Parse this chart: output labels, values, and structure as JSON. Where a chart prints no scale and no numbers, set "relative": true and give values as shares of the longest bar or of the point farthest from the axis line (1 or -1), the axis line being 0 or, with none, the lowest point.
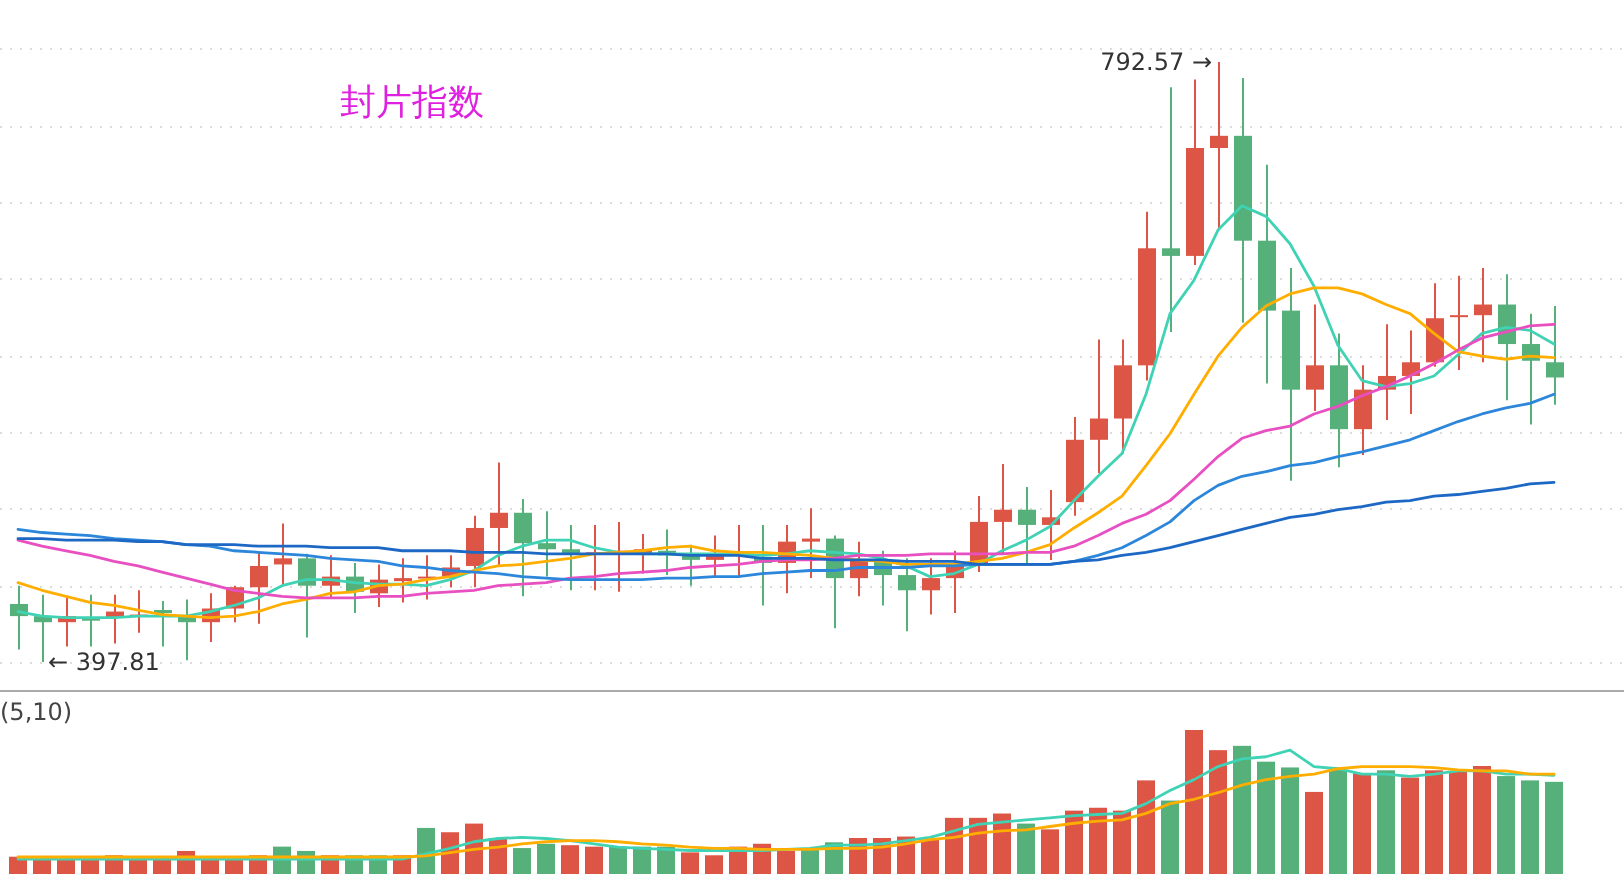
{
  "chart_data": [
    {
      "type": "candlestick",
      "title": "封片指数",
      "categories": [
        null,
        null,
        null,
        null,
        null,
        null,
        null,
        null,
        null,
        null,
        null,
        null,
        null,
        null,
        null,
        null,
        null,
        null,
        null,
        null,
        null,
        null,
        null,
        null,
        null,
        null,
        null,
        null,
        null,
        null,
        null,
        null,
        null,
        null,
        null,
        null,
        null,
        null,
        null,
        null,
        null,
        null,
        null,
        null,
        null,
        null,
        null,
        null,
        null,
        null,
        null,
        null,
        null,
        null,
        null,
        null,
        null,
        null,
        null,
        null,
        null,
        null,
        null,
        null,
        null
      ],
      "ohlc": [
        [
          436,
          448,
          406,
          428
        ],
        [
          428,
          442,
          397.81,
          424
        ],
        [
          424,
          440,
          408,
          428
        ],
        [
          427,
          442,
          408,
          425
        ],
        [
          427,
          442,
          410,
          431
        ],
        [
          428,
          445,
          417,
          429
        ],
        [
          432,
          438,
          408,
          430
        ],
        [
          428,
          439,
          399,
          424
        ],
        [
          424,
          443,
          411,
          433
        ],
        [
          433,
          448,
          424,
          447
        ],
        [
          447,
          470,
          423,
          461
        ],
        [
          462,
          489,
          448,
          466
        ],
        [
          466,
          469,
          414,
          448
        ],
        [
          448,
          468,
          440,
          454
        ],
        [
          454,
          463,
          430,
          444
        ],
        [
          443,
          462,
          434,
          452
        ],
        [
          451,
          466,
          437,
          453
        ],
        [
          453,
          468,
          439,
          454
        ],
        [
          454,
          468,
          447,
          460
        ],
        [
          461,
          494,
          447,
          486
        ],
        [
          486,
          529,
          461,
          496
        ],
        [
          496,
          505,
          441,
          476
        ],
        [
          476,
          497,
          454,
          472
        ],
        [
          472,
          488,
          445,
          469
        ],
        [
          469,
          488,
          445,
          470
        ],
        [
          469,
          490,
          444,
          471
        ],
        [
          469,
          482,
          456,
          472
        ],
        [
          471,
          485,
          455,
          468
        ],
        [
          468,
          475,
          448,
          465
        ],
        [
          465,
          481,
          453,
          468
        ],
        [
          468,
          488,
          453,
          470
        ],
        [
          467,
          488,
          435,
          463
        ],
        [
          463,
          488,
          443,
          477
        ],
        [
          477,
          499,
          453,
          479
        ],
        [
          479,
          481,
          420,
          453
        ],
        [
          453,
          477,
          441,
          465
        ],
        [
          465,
          471,
          435,
          455
        ],
        [
          455,
          466,
          418,
          445
        ],
        [
          445,
          466,
          429,
          453
        ],
        [
          453,
          471,
          430,
          462
        ],
        [
          462,
          507,
          457,
          490
        ],
        [
          490,
          528,
          469,
          498
        ],
        [
          498,
          513,
          462,
          488
        ],
        [
          488,
          511,
          465,
          493
        ],
        [
          503,
          559,
          494,
          544
        ],
        [
          544,
          610,
          522,
          558
        ],
        [
          558,
          610,
          535,
          593
        ],
        [
          593,
          694,
          583,
          670
        ],
        [
          670,
          776,
          615,
          665
        ],
        [
          665,
          781,
          659,
          736
        ],
        [
          736,
          792.57,
          682,
          744
        ],
        [
          744,
          782,
          621,
          675
        ],
        [
          675,
          725,
          581,
          629
        ],
        [
          629,
          657,
          517,
          577
        ],
        [
          577,
          633,
          563,
          593
        ],
        [
          593,
          614,
          526,
          551
        ],
        [
          551,
          593,
          534,
          577
        ],
        [
          577,
          620,
          557,
          586
        ],
        [
          586,
          616,
          561,
          595
        ],
        [
          595,
          647,
          592,
          624
        ],
        [
          625,
          652,
          590,
          626
        ],
        [
          626,
          657,
          595,
          633
        ],
        [
          633,
          653,
          570,
          607
        ],
        [
          607,
          627,
          554,
          596
        ],
        [
          595,
          632,
          567,
          585
        ]
      ],
      "colors": [
        "#55b07a",
        "#55b07a",
        "#dd5544",
        "#55b07a",
        "#dd5544",
        "#dd5544",
        "#55b07a",
        "#55b07a",
        "#dd5544",
        "#dd5544",
        "#dd5544",
        "#dd5544",
        "#55b07a",
        "#dd5544",
        "#55b07a",
        "#dd5544",
        "#dd5544",
        "#dd5544",
        "#dd5544",
        "#dd5544",
        "#dd5544",
        "#55b07a",
        "#55b07a",
        "#55b07a",
        "#dd5544",
        "#dd5544",
        "#dd5544",
        "#55b07a",
        "#55b07a",
        "#dd5544",
        "#dd5544",
        "#55b07a",
        "#dd5544",
        "#dd5544",
        "#55b07a",
        "#dd5544",
        "#55b07a",
        "#55b07a",
        "#dd5544",
        "#dd5544",
        "#dd5544",
        "#dd5544",
        "#55b07a",
        "#dd5544",
        "#dd5544",
        "#dd5544",
        "#dd5544",
        "#dd5544",
        "#55b07a",
        "#dd5544",
        "#dd5544",
        "#55b07a",
        "#55b07a",
        "#55b07a",
        "#dd5544",
        "#55b07a",
        "#dd5544",
        "#dd5544",
        "#dd5544",
        "#dd5544",
        "#dd5544",
        "#dd5544",
        "#55b07a",
        "#55b07a",
        "#55b07a"
      ],
      "series": [
        {
          "type": "line",
          "color": "#40d2b4",
          "values": [
            431,
            428,
            427,
            427,
            427,
            428,
            428,
            428,
            431,
            435,
            440,
            448,
            452,
            452,
            450,
            449,
            449,
            448,
            452,
            458,
            468,
            474,
            478,
            478,
            473,
            470,
            469,
            469,
            469,
            469,
            469,
            468,
            469,
            471,
            470,
            469,
            466,
            461,
            454,
            456,
            462,
            471,
            478,
            487,
            504,
            520,
            535,
            574,
            627,
            649,
            682,
            698,
            691,
            673,
            645,
            606,
            583,
            579,
            581,
            586,
            600,
            614,
            618,
            616,
            607
          ]
        },
        {
          "type": "line",
          "color": "#ffae00",
          "values": [
            450,
            445,
            441,
            437,
            435,
            432,
            429,
            428,
            427,
            428,
            431,
            436,
            439,
            443,
            444,
            448,
            449,
            452,
            454,
            458,
            461,
            462,
            464,
            466,
            469,
            470,
            471,
            473,
            474,
            471,
            470,
            470,
            469,
            468,
            466,
            465,
            464,
            462,
            462,
            462,
            464,
            466,
            470,
            475,
            486,
            496,
            507,
            527,
            548,
            574,
            599,
            618,
            632,
            640,
            644,
            644,
            640,
            633,
            627,
            614,
            602,
            599,
            597,
            599,
            598
          ]
        },
        {
          "type": "line",
          "color": "#e84fc0",
          "values": [
            478,
            474,
            471,
            468,
            464,
            461,
            457,
            453,
            449,
            445,
            443,
            441,
            440,
            440,
            440,
            441,
            441,
            443,
            444,
            445,
            448,
            449,
            450,
            453,
            454,
            456,
            457,
            458,
            460,
            461,
            462,
            464,
            465,
            465,
            466,
            468,
            468,
            468,
            469,
            469,
            469,
            469,
            470,
            470,
            474,
            481,
            489,
            495,
            504,
            518,
            533,
            545,
            550,
            553,
            561,
            566,
            573,
            579,
            586,
            594,
            603,
            611,
            615,
            619,
            620
          ]
        },
        {
          "type": "line",
          "color": "#2c86da",
          "values": [
            485,
            483,
            482,
            481,
            479,
            478,
            477,
            475,
            474,
            471,
            470,
            469,
            468,
            466,
            465,
            464,
            461,
            460,
            458,
            457,
            456,
            454,
            453,
            452,
            452,
            452,
            452,
            453,
            453,
            454,
            454,
            456,
            457,
            458,
            458,
            460,
            460,
            460,
            461,
            461,
            462,
            462,
            462,
            462,
            464,
            468,
            473,
            481,
            490,
            504,
            514,
            520,
            523,
            527,
            529,
            533,
            536,
            540,
            544,
            550,
            556,
            561,
            565,
            568,
            574
          ]
        },
        {
          "type": "line",
          "color": "#1c68c4",
          "values": [
            479,
            479,
            478,
            478,
            478,
            477,
            477,
            475,
            475,
            475,
            474,
            474,
            474,
            473,
            473,
            473,
            471,
            471,
            471,
            470,
            470,
            470,
            469,
            469,
            469,
            469,
            469,
            469,
            468,
            468,
            468,
            466,
            466,
            466,
            465,
            465,
            465,
            464,
            464,
            464,
            462,
            462,
            462,
            462,
            464,
            465,
            468,
            470,
            473,
            477,
            481,
            485,
            489,
            493,
            495,
            498,
            500,
            503,
            504,
            507,
            508,
            510,
            512,
            515,
            516
          ]
        }
      ],
      "grid": "y",
      "annotations": [
        "792.57 →",
        "← 397.81"
      ]
    },
    {
      "type": "bar",
      "title": "(5,10)",
      "relative": true,
      "categories": [
        null,
        null,
        null,
        null,
        null,
        null,
        null,
        null,
        null,
        null,
        null,
        null,
        null,
        null,
        null,
        null,
        null,
        null,
        null,
        null,
        null,
        null,
        null,
        null,
        null,
        null,
        null,
        null,
        null,
        null,
        null,
        null,
        null,
        null,
        null,
        null,
        null,
        null,
        null,
        null,
        null,
        null,
        null,
        null,
        null,
        null,
        null,
        null,
        null,
        null,
        null,
        null,
        null,
        null,
        null,
        null,
        null,
        null,
        null,
        null,
        null,
        null,
        null,
        null,
        null
      ],
      "series": [
        {
          "type": "bar",
          "values": [
            0.12,
            0.12,
            0.12,
            0.12,
            0.13,
            0.12,
            0.12,
            0.16,
            0.12,
            0.1,
            0.13,
            0.19,
            0.16,
            0.13,
            0.13,
            0.13,
            0.13,
            0.32,
            0.29,
            0.35,
            0.25,
            0.18,
            0.21,
            0.2,
            0.19,
            0.19,
            0.19,
            0.19,
            0.15,
            0.13,
            0.19,
            0.21,
            0.16,
            0.17,
            0.22,
            0.25,
            0.25,
            0.26,
            0.24,
            0.39,
            0.39,
            0.42,
            0.35,
            0.31,
            0.44,
            0.46,
            0.44,
            0.65,
            0.51,
            1,
            0.86,
            0.89,
            0.78,
            0.74,
            0.57,
            0.74,
            0.7,
            0.72,
            0.67,
            0.72,
            0.71,
            0.75,
            0.68,
            0.65,
            0.64
          ],
          "colors": [
            "#dd5544",
            "#dd5544",
            "#dd5544",
            "#dd5544",
            "#dd5544",
            "#dd5544",
            "#dd5544",
            "#dd5544",
            "#dd5544",
            "#dd5544",
            "#dd5544",
            "#55b07a",
            "#55b07a",
            "#dd5544",
            "#55b07a",
            "#55b07a",
            "#dd5544",
            "#55b07a",
            "#dd5544",
            "#dd5544",
            "#dd5544",
            "#55b07a",
            "#55b07a",
            "#dd5544",
            "#dd5544",
            "#55b07a",
            "#55b07a",
            "#55b07a",
            "#dd5544",
            "#dd5544",
            "#dd5544",
            "#dd5544",
            "#dd5544",
            "#55b07a",
            "#55b07a",
            "#dd5544",
            "#dd5544",
            "#dd5544",
            "#dd5544",
            "#dd5544",
            "#dd5544",
            "#dd5544",
            "#55b07a",
            "#dd5544",
            "#dd5544",
            "#dd5544",
            "#dd5544",
            "#dd5544",
            "#55b07a",
            "#dd5544",
            "#dd5544",
            "#55b07a",
            "#55b07a",
            "#55b07a",
            "#dd5544",
            "#55b07a",
            "#dd5544",
            "#55b07a",
            "#dd5544",
            "#dd5544",
            "#dd5544",
            "#dd5544",
            "#55b07a",
            "#55b07a",
            "#55b07a"
          ]
        }
      ]
    },
    {
      "type": "line",
      "relative": true,
      "categories": [
        null,
        null,
        null,
        null,
        null,
        null,
        null,
        null,
        null,
        null,
        null,
        null,
        null,
        null,
        null,
        null,
        null,
        null,
        null,
        null,
        null,
        null,
        null,
        null,
        null,
        null,
        null,
        null,
        null,
        null,
        null,
        null,
        null,
        null,
        null,
        null,
        null,
        null,
        null,
        null,
        null,
        null,
        null,
        null,
        null,
        null,
        null,
        null,
        null,
        null,
        null,
        null,
        null,
        null,
        null,
        null,
        null,
        null,
        null,
        null,
        null,
        null,
        null,
        null,
        null
      ],
      "series": [
        {
          "color": "#40d2b4",
          "values": [
            0,
            0,
            0,
            0,
            0,
            0,
            0,
            0,
            0,
            0,
            0,
            0,
            0,
            0,
            0,
            0,
            0,
            0.05,
            0.1,
            0.16,
            0.19,
            0.2,
            0.19,
            0.17,
            0.14,
            0.11,
            0.1,
            0.09,
            0.08,
            0.08,
            0.08,
            0.08,
            0.09,
            0.1,
            0.13,
            0.13,
            0.14,
            0.17,
            0.2,
            0.26,
            0.32,
            0.34,
            0.36,
            0.38,
            0.4,
            0.41,
            0.42,
            0.51,
            0.63,
            0.73,
            0.85,
            0.92,
            0.94,
            1,
            0.85,
            0.83,
            0.78,
            0.78,
            0.76,
            0.78,
            0.81,
            0.81,
            0.78,
            0.78,
            0.77
          ]
        },
        {
          "color": "#ffae00",
          "values": [
            0.02,
            0.02,
            0.02,
            0.02,
            0.02,
            0.02,
            0.02,
            0.02,
            0.02,
            0.02,
            0.02,
            0.02,
            0.02,
            0.02,
            0.02,
            0.02,
            0.02,
            0.03,
            0.06,
            0.09,
            0.11,
            0.14,
            0.16,
            0.17,
            0.17,
            0.16,
            0.14,
            0.13,
            0.11,
            0.1,
            0.1,
            0.09,
            0.09,
            0.09,
            0.1,
            0.1,
            0.11,
            0.14,
            0.18,
            0.2,
            0.24,
            0.26,
            0.27,
            0.3,
            0.33,
            0.35,
            0.36,
            0.42,
            0.51,
            0.55,
            0.61,
            0.68,
            0.73,
            0.76,
            0.78,
            0.83,
            0.85,
            0.85,
            0.85,
            0.84,
            0.82,
            0.81,
            0.81,
            0.78,
            0.78
          ]
        }
      ]
    }
  ]
}
